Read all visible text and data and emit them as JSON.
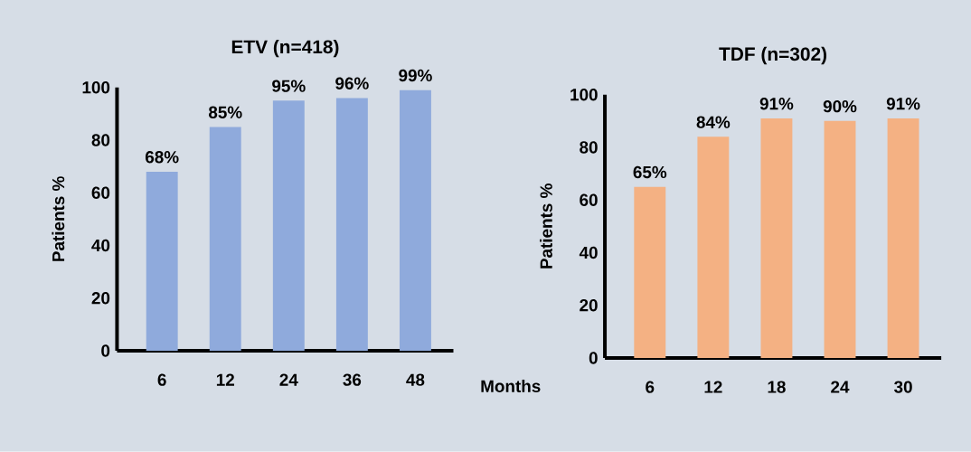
{
  "chart_data": [
    {
      "type": "bar",
      "title": "ETV (n=418)",
      "ylabel": "Patients %",
      "xlabel": "Months",
      "categories": [
        "6",
        "12",
        "24",
        "36",
        "48"
      ],
      "values": [
        68,
        85,
        95,
        96,
        99
      ],
      "value_labels": [
        "68%",
        "85%",
        "95%",
        "96%",
        "99%"
      ],
      "color": "#8faadc",
      "ylim": [
        0,
        100
      ],
      "yticks": [
        0,
        20,
        40,
        60,
        80,
        100
      ]
    },
    {
      "type": "bar",
      "title": "TDF (n=302)",
      "ylabel": "Patients %",
      "categories": [
        "6",
        "12",
        "18",
        "24",
        "30"
      ],
      "values": [
        65,
        84,
        91,
        90,
        91
      ],
      "value_labels": [
        "65%",
        "84%",
        "91%",
        "90%",
        "91%"
      ],
      "color": "#f4b183",
      "ylim": [
        0,
        100
      ],
      "yticks": [
        0,
        20,
        40,
        60,
        80,
        100
      ]
    }
  ]
}
